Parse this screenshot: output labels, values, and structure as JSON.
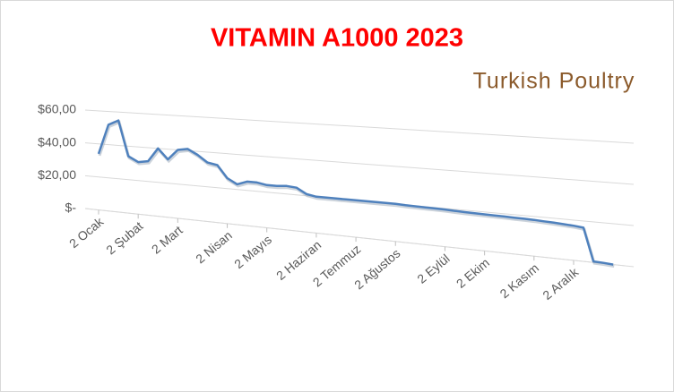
{
  "chart_data": {
    "type": "line",
    "title": "VITAMIN A1000 2023",
    "watermark": "Turkish Poultry",
    "categories": [
      "2 Ocak",
      null,
      null,
      null,
      "2 Şubat",
      null,
      null,
      null,
      "2 Mart",
      null,
      null,
      null,
      null,
      "2 Nisan",
      null,
      null,
      null,
      "2 Mayıs",
      null,
      null,
      null,
      null,
      "2 Haziran",
      null,
      null,
      null,
      "2 Temmuz",
      null,
      null,
      null,
      "2 Ağustos",
      null,
      null,
      null,
      null,
      "2 Eylül",
      null,
      null,
      null,
      "2 Ekim",
      null,
      null,
      null,
      null,
      "2 Kasım",
      null,
      null,
      null,
      "2 Aralık",
      null,
      null,
      null,
      null
    ],
    "series": [
      {
        "name": "VITAMIN A1000",
        "color": "#4f81bd",
        "values": [
          34,
          52,
          55,
          34,
          31,
          32,
          40,
          34,
          40,
          41,
          38,
          34,
          33,
          26,
          23,
          25,
          25,
          24,
          24,
          24.5,
          24,
          21,
          20,
          20,
          20,
          20,
          20,
          20,
          20,
          20,
          20,
          19.8,
          19.7,
          19.6,
          19.5,
          19.4,
          19.2,
          19,
          18.9,
          18.8,
          18.7,
          18.6,
          18.5,
          18.4,
          18.3,
          18,
          17.8,
          17.5,
          17.2,
          16.7,
          0.5,
          0.3,
          0
        ]
      }
    ],
    "ylim": [
      0,
      60
    ],
    "yticks": [
      {
        "value": 0,
        "label": "$-"
      },
      {
        "value": 20,
        "label": "$20,00"
      },
      {
        "value": 40,
        "label": "$40,00"
      },
      {
        "value": 60,
        "label": "$60,00"
      }
    ],
    "grid": true
  }
}
